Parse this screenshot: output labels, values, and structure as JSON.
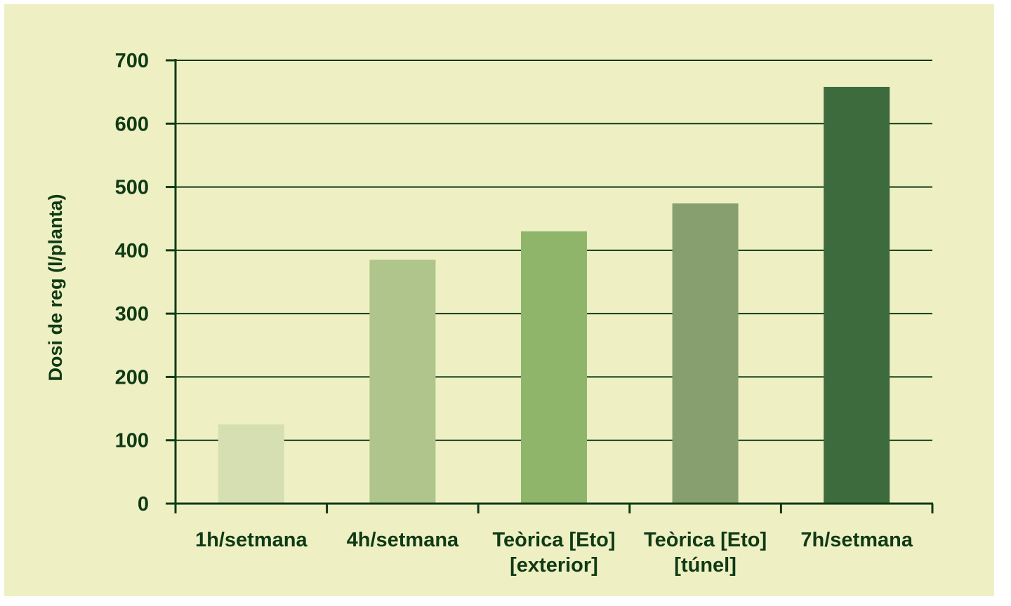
{
  "colors": {
    "background": "#eef0c4",
    "text": "#0f3a15",
    "axis": "#0f3a15",
    "bars": [
      "#d6dfb2",
      "#afc58b",
      "#8fb56b",
      "#879e6f",
      "#3e6b3e"
    ]
  },
  "chart_data": {
    "type": "bar",
    "categories": [
      [
        "1h/setmana"
      ],
      [
        "4h/setmana"
      ],
      [
        "Teòrica [Eto]",
        "[exterior]"
      ],
      [
        "Teòrica [Eto]",
        "[túnel]"
      ],
      [
        "7h/setmana"
      ]
    ],
    "values": [
      125,
      385,
      430,
      474,
      658
    ],
    "title": "",
    "xlabel": "",
    "ylabel": "Dosi de reg (l/planta)",
    "ylim": [
      0,
      700
    ],
    "yticks": [
      0,
      100,
      200,
      300,
      400,
      500,
      600,
      700
    ],
    "grid": true,
    "legend": "none"
  }
}
